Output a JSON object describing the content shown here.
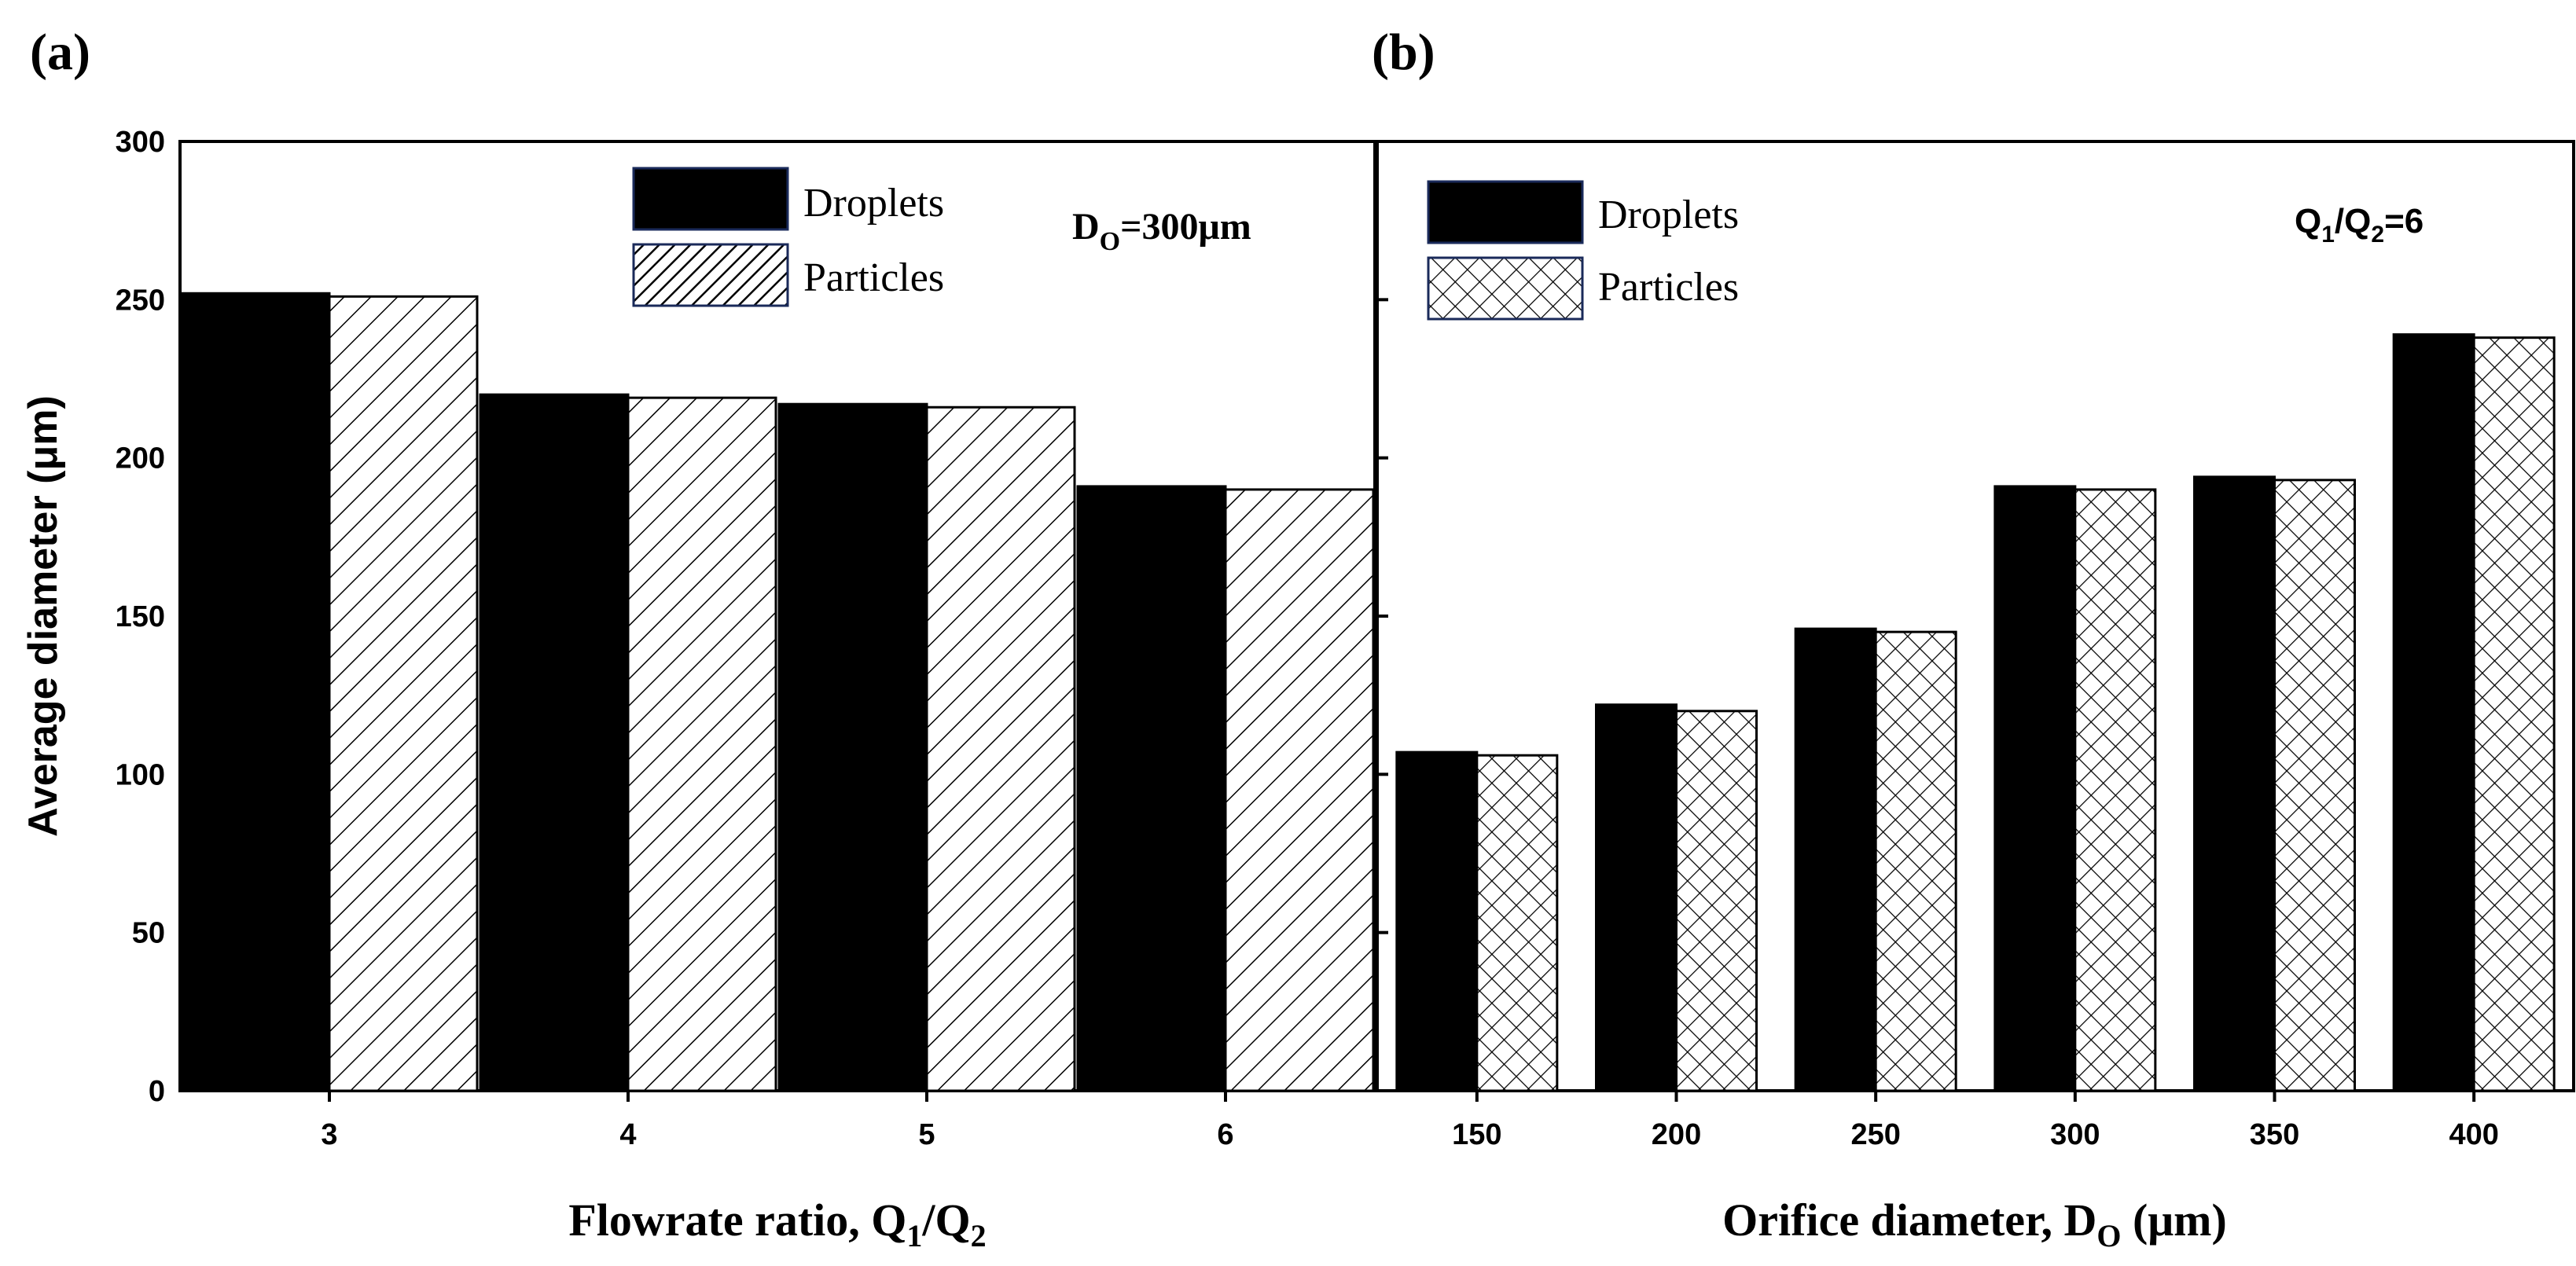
{
  "chart_data": [
    {
      "type": "bar",
      "panel_label": "(a)",
      "title": "",
      "xlabel": {
        "main": "Flowrate ratio, Q",
        "sub1": "1",
        "mid": "/Q",
        "sub2": "2"
      },
      "ylabel": "Average diameter (μm)",
      "ylim": [
        0,
        300
      ],
      "yticks": [
        "0",
        "50",
        "100",
        "150",
        "200",
        "250",
        "300"
      ],
      "categories": [
        "3",
        "4",
        "5",
        "6"
      ],
      "series": [
        {
          "name": "Droplets",
          "values": [
            252,
            220,
            217,
            191
          ]
        },
        {
          "name": "Particles",
          "values": [
            251,
            219,
            216,
            190
          ]
        }
      ],
      "annotation": {
        "main": "D",
        "sub": "O",
        "rest": "=300μm"
      },
      "legend": [
        "Droplets",
        "Particles"
      ]
    },
    {
      "type": "bar",
      "panel_label": "(b)",
      "title": "",
      "xlabel": {
        "main": "Orifice diameter, D",
        "sub": "O",
        "rest": " (μm)"
      },
      "ylabel": "",
      "ylim": [
        0,
        300
      ],
      "categories": [
        "150",
        "200",
        "250",
        "300",
        "350",
        "400"
      ],
      "series": [
        {
          "name": "Droplets",
          "values": [
            107,
            122,
            146,
            191,
            194,
            239
          ]
        },
        {
          "name": "Particles",
          "values": [
            106,
            120,
            145,
            190,
            193,
            238
          ]
        }
      ],
      "annotation": {
        "a": "Q",
        "a_sub": "1",
        "b": "/Q",
        "b_sub": "2",
        "rest": "=6"
      },
      "legend": [
        "Droplets",
        "Particles"
      ]
    }
  ],
  "colors": {
    "droplets": "#000000",
    "pattern": "#000000",
    "background": "#ffffff"
  }
}
